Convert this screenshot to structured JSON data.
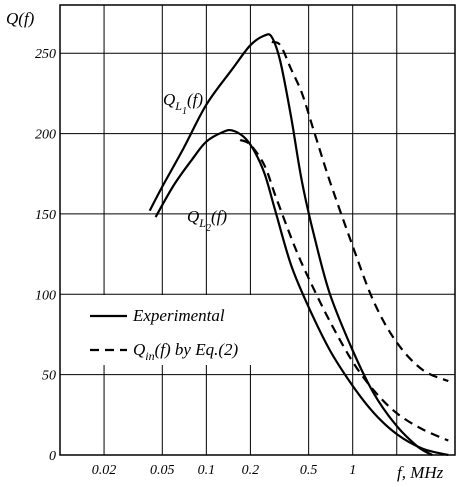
{
  "chart_data": {
    "type": "line",
    "title": "",
    "ylabel": "Q(f)",
    "xlabel": "f, MHz",
    "xscale": "log",
    "xlim": [
      0.01,
      5
    ],
    "ylim": [
      0,
      280
    ],
    "x_ticks": [
      {
        "value": 0.02,
        "label": "0.02"
      },
      {
        "value": 0.05,
        "label": "0.05"
      },
      {
        "value": 0.1,
        "label": "0.1"
      },
      {
        "value": 0.2,
        "label": "0.2"
      },
      {
        "value": 0.5,
        "label": "0.5"
      },
      {
        "value": 1,
        "label": "1"
      }
    ],
    "y_ticks": [
      0,
      50,
      100,
      150,
      200,
      250
    ],
    "grid": true,
    "legend": {
      "placement": "center-left",
      "entries": [
        {
          "label": "Experimental",
          "style": "solid"
        },
        {
          "label_main": "Q",
          "label_sub": "in",
          "label_rest": "(f) by Eq.(2)",
          "style": "dashed"
        }
      ]
    },
    "annotations": [
      {
        "id": "ql1",
        "main": "Q",
        "sub": "L",
        "subsub": "1",
        "rest": "(f)"
      },
      {
        "id": "ql2",
        "main": "Q",
        "sub": "L",
        "subsub": "2",
        "rest": "(f)"
      }
    ],
    "series": [
      {
        "style": "solid",
        "points": [
          [
            0.041,
            152
          ],
          [
            0.05,
            167
          ],
          [
            0.07,
            191
          ],
          [
            0.1,
            218
          ],
          [
            0.15,
            240
          ],
          [
            0.2,
            255
          ],
          [
            0.25,
            261
          ],
          [
            0.28,
            260
          ],
          [
            0.32,
            245
          ],
          [
            0.38,
            210
          ],
          [
            0.45,
            170
          ],
          [
            0.55,
            135
          ],
          [
            0.7,
            100
          ],
          [
            1,
            65
          ],
          [
            1.4,
            38
          ],
          [
            2,
            18
          ],
          [
            2.8,
            5
          ],
          [
            3.5,
            0
          ]
        ]
      },
      {
        "style": "solid",
        "points": [
          [
            0.045,
            148
          ],
          [
            0.06,
            168
          ],
          [
            0.08,
            184
          ],
          [
            0.1,
            195
          ],
          [
            0.13,
            201
          ],
          [
            0.15,
            202
          ],
          [
            0.18,
            198
          ],
          [
            0.21,
            190
          ],
          [
            0.25,
            175
          ],
          [
            0.3,
            150
          ],
          [
            0.38,
            118
          ],
          [
            0.5,
            92
          ],
          [
            0.7,
            65
          ],
          [
            1,
            43
          ],
          [
            1.4,
            26
          ],
          [
            2,
            13
          ],
          [
            3,
            4
          ],
          [
            4.5,
            0
          ]
        ]
      },
      {
        "style": "dashed",
        "points": [
          [
            0.17,
            196
          ],
          [
            0.2,
            193
          ],
          [
            0.25,
            180
          ],
          [
            0.3,
            160
          ],
          [
            0.4,
            130
          ],
          [
            0.5,
            110
          ],
          [
            0.7,
            83
          ],
          [
            1,
            58
          ],
          [
            1.4,
            40
          ],
          [
            2,
            26
          ],
          [
            3,
            16
          ],
          [
            4.5,
            9
          ]
        ]
      },
      {
        "style": "dashed",
        "points": [
          [
            0.28,
            257
          ],
          [
            0.32,
            255
          ],
          [
            0.38,
            240
          ],
          [
            0.45,
            225
          ],
          [
            0.55,
            200
          ],
          [
            0.7,
            170
          ],
          [
            1,
            130
          ],
          [
            1.4,
            95
          ],
          [
            2,
            70
          ],
          [
            3,
            53
          ],
          [
            4.5,
            46
          ]
        ]
      }
    ]
  }
}
